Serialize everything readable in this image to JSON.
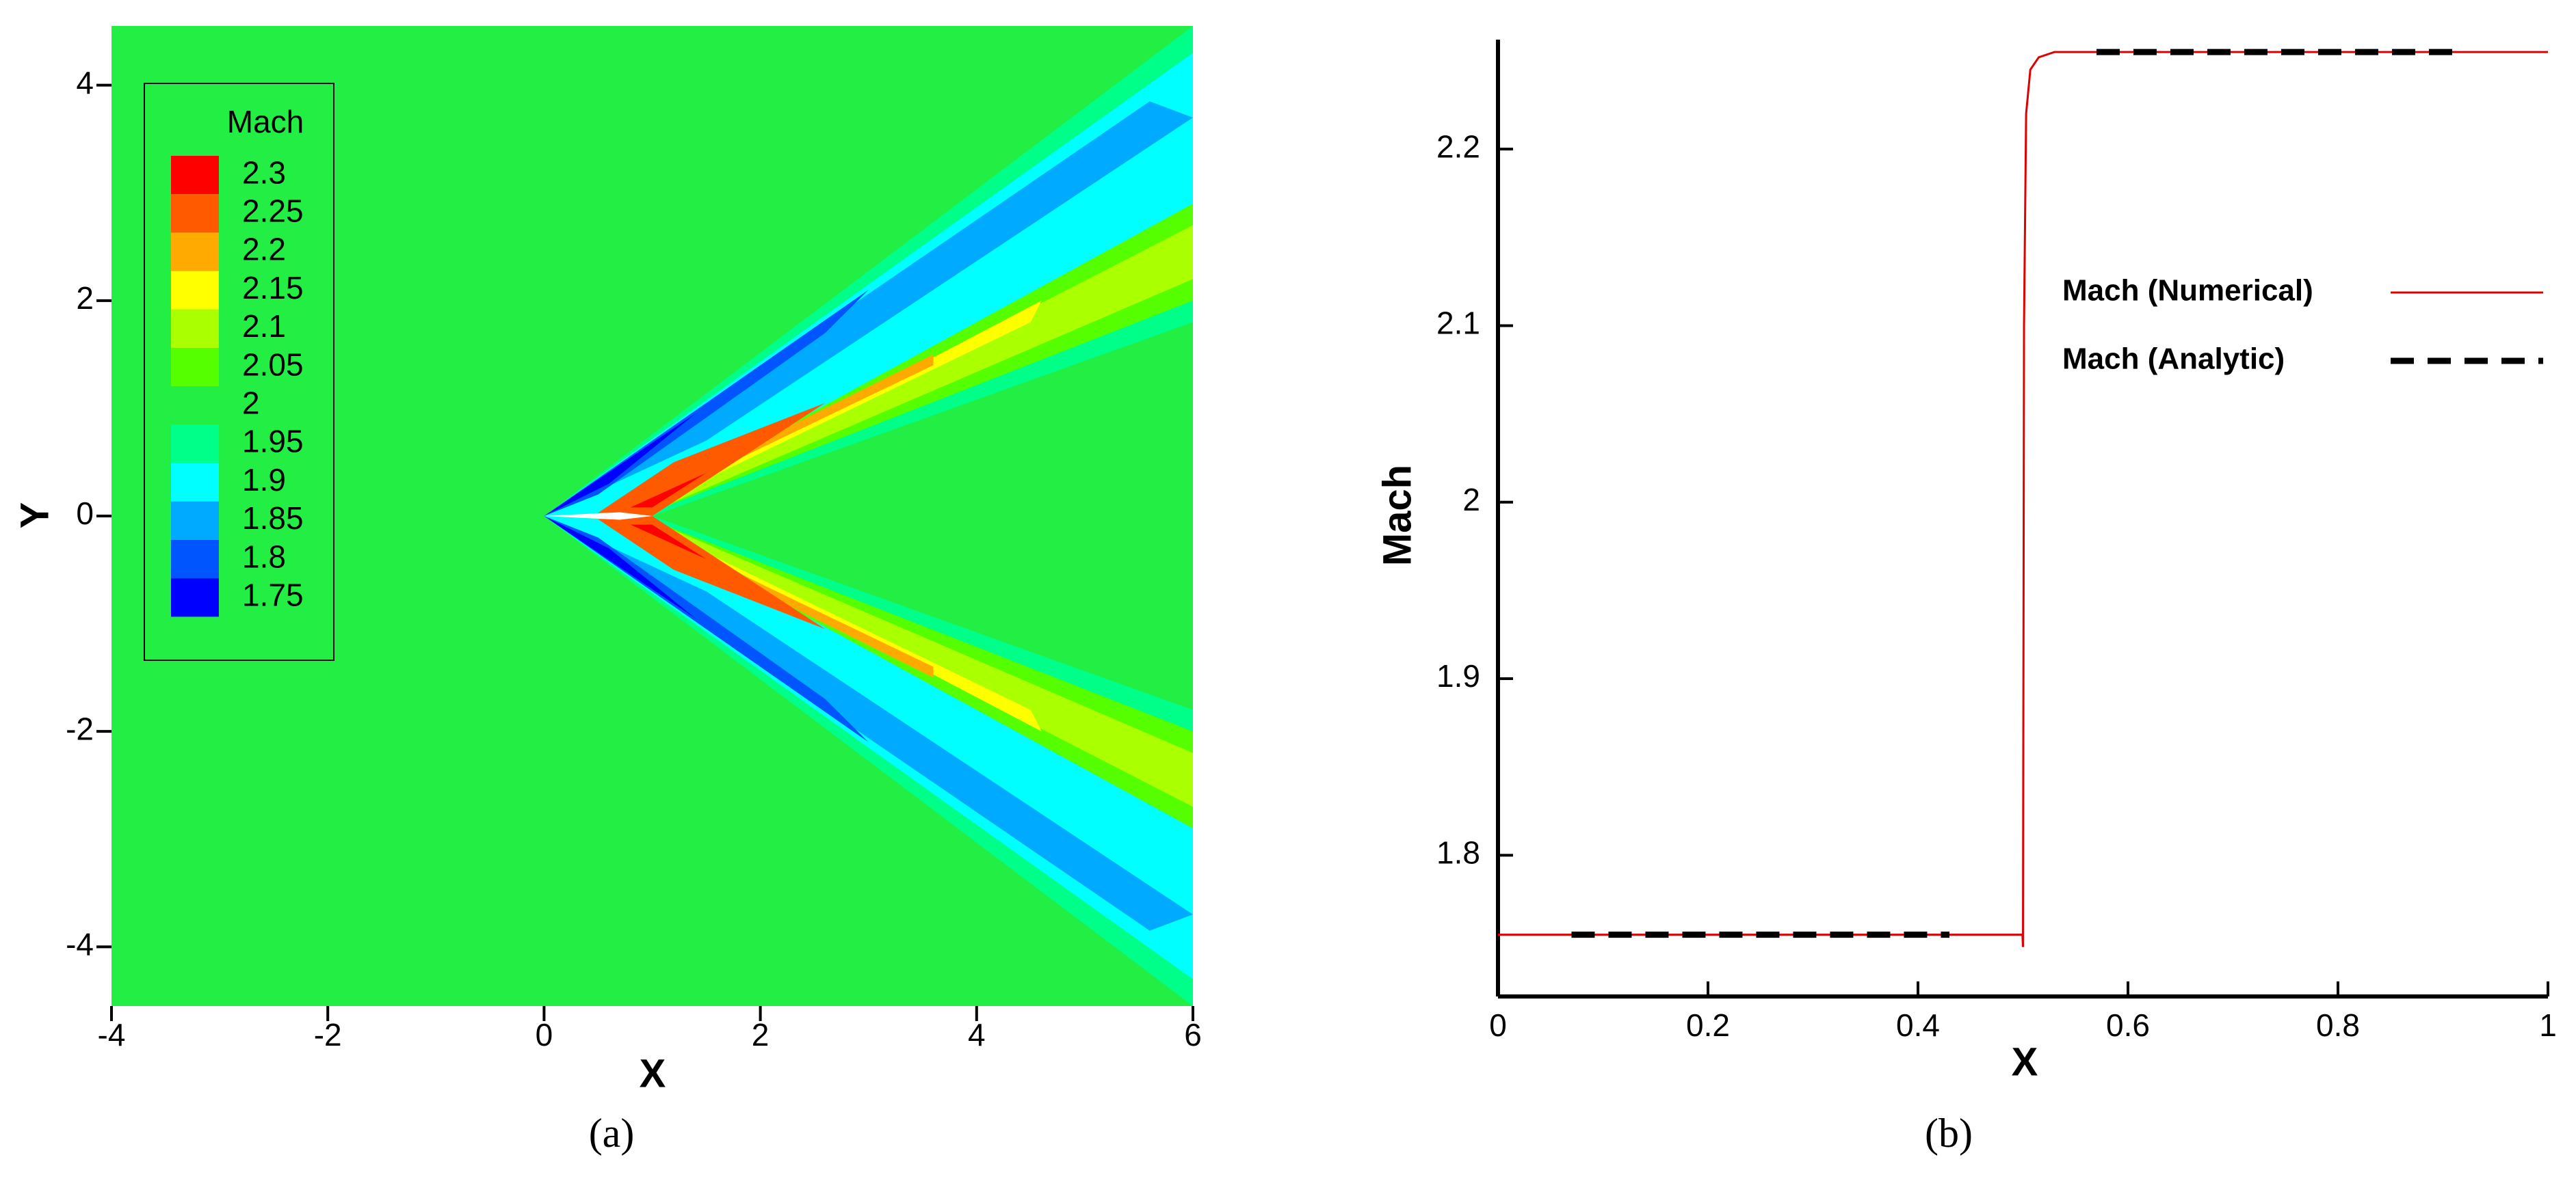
{
  "chart_data": [
    {
      "type": "contour",
      "xlabel": "X",
      "ylabel": "Y",
      "caption": "(a)",
      "xlim": [
        -4,
        6
      ],
      "ylim": [
        -4.55,
        4.55
      ],
      "xticks": [
        -4,
        -2,
        0,
        2,
        4,
        6
      ],
      "yticks": [
        -4,
        -2,
        0,
        2,
        4
      ],
      "legend_title": "Mach",
      "levels": [
        2.3,
        2.25,
        2.2,
        2.15,
        2.1,
        2.05,
        2,
        1.95,
        1.9,
        1.85,
        1.8,
        1.75
      ],
      "level_colors": [
        "#ff0000",
        "#ff5a00",
        "#ffaa00",
        "#ffff00",
        "#aaff00",
        "#55ff00",
        "#22ee44",
        "#00ff88",
        "#00ffff",
        "#00aaff",
        "#0055ff",
        "#0000ff"
      ]
    },
    {
      "type": "line",
      "xlabel": "X",
      "ylabel": "Mach",
      "caption": "(b)",
      "xlim": [
        0,
        1
      ],
      "ylim": [
        1.72,
        2.262
      ],
      "xticks": [
        0,
        0.2,
        0.4,
        0.6,
        0.8,
        1
      ],
      "yticks": [
        1.8,
        1.9,
        2,
        2.1,
        2.2
      ],
      "series": [
        {
          "name": "Mach (Numerical)",
          "color": "#e00000",
          "style": "solid",
          "x": [
            0,
            0.4995,
            0.5,
            0.501,
            0.503,
            0.507,
            0.515,
            0.53,
            1
          ],
          "values": [
            1.755,
            1.755,
            1.748,
            2.1,
            2.22,
            2.245,
            2.252,
            2.255,
            2.255
          ]
        },
        {
          "name": "Mach (Analytic)",
          "color": "#000000",
          "style": "dashed",
          "x": [
            0.07,
            0.43,
            0.5,
            0.57,
            0.92
          ],
          "values": [
            1.755,
            1.755,
            null,
            2.255,
            2.255
          ]
        }
      ]
    }
  ]
}
